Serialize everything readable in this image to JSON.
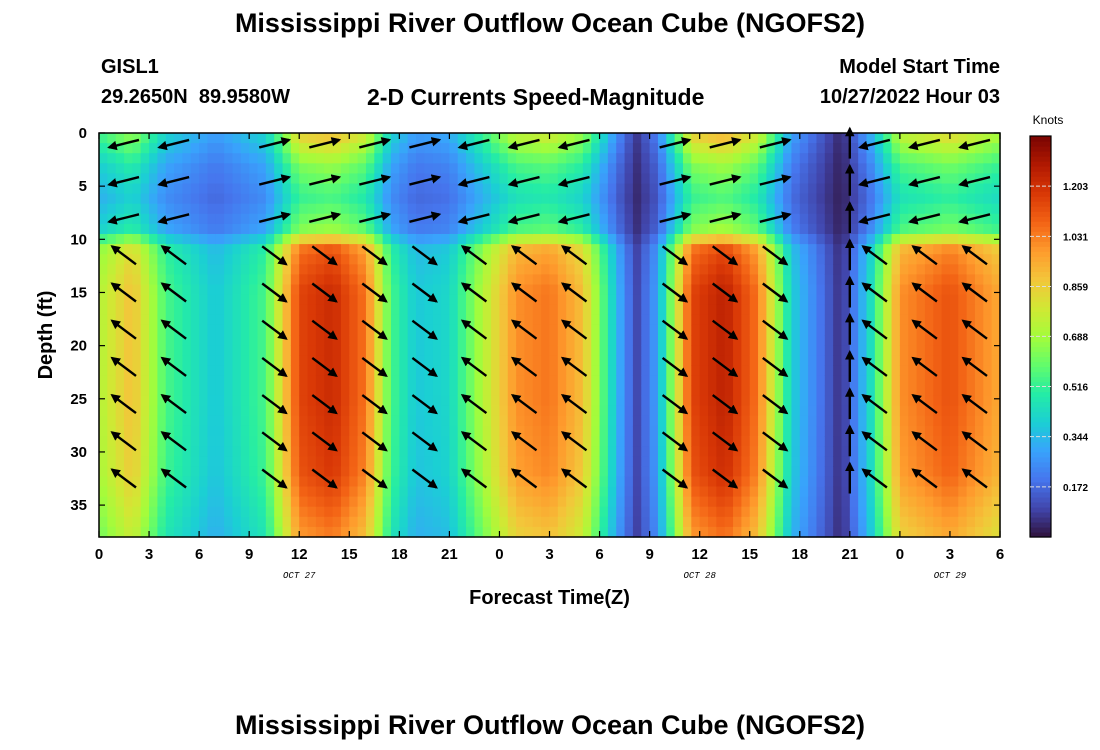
{
  "title": "Mississippi River Outflow Ocean Cube (NGOFS2)",
  "title_bottom": "Mississippi River Outflow Ocean Cube (NGOFS2)",
  "station": {
    "id": "GISL1",
    "coords": "29.2650N  89.9580W"
  },
  "subtitle": "2-D Currents Speed-Magnitude",
  "model_start": {
    "label": "Model Start Time",
    "value": "10/27/2022 Hour 03"
  },
  "chart_data": {
    "type": "heatmap",
    "xlabel": "Forecast Time(Z)",
    "ylabel": "Depth (ft)",
    "x_range_hours": [
      0,
      54
    ],
    "x_tick_labels": [
      "0",
      "3",
      "6",
      "9",
      "12",
      "15",
      "18",
      "21",
      "0",
      "3",
      "6",
      "9",
      "12",
      "15",
      "18",
      "21",
      "0",
      "3",
      "6"
    ],
    "date_labels": [
      {
        "label": "OCT 27",
        "hour": 12
      },
      {
        "label": "OCT 28",
        "hour": 36
      },
      {
        "label": "OCT 29",
        "hour": 51
      }
    ],
    "y_range": [
      0,
      38
    ],
    "y_reversed": true,
    "y_ticks": [
      0,
      5,
      10,
      15,
      20,
      25,
      30,
      35
    ],
    "colorbar": {
      "label": "Knots",
      "range": [
        0,
        1.375
      ],
      "ticks": [
        "1.203",
        "1.031",
        "0.859",
        "0.688",
        "0.516",
        "0.344",
        "0.172"
      ],
      "tick_values": [
        1.203,
        1.031,
        0.859,
        0.688,
        0.516,
        0.344,
        0.172
      ],
      "colormap": [
        "#30123b",
        "#4145ab",
        "#4675ed",
        "#39a2fc",
        "#1bcfd4",
        "#24eca6",
        "#61fc6c",
        "#a4fc3b",
        "#d1e834",
        "#f3c63a",
        "#fe9b2d",
        "#f36315",
        "#d93806",
        "#b11901",
        "#7a0402"
      ]
    },
    "speed_by_time": [
      {
        "hour": 0,
        "speed": 0.72
      },
      {
        "hour": 2,
        "speed": 0.9
      },
      {
        "hour": 4,
        "speed": 0.55
      },
      {
        "hour": 7,
        "speed": 0.38
      },
      {
        "hour": 10,
        "speed": 0.55
      },
      {
        "hour": 12,
        "speed": 1.15
      },
      {
        "hour": 14,
        "speed": 1.22
      },
      {
        "hour": 16,
        "speed": 1.05
      },
      {
        "hour": 17.5,
        "speed": 0.55
      },
      {
        "hour": 19,
        "speed": 0.38
      },
      {
        "hour": 21,
        "speed": 0.42
      },
      {
        "hour": 23,
        "speed": 0.72
      },
      {
        "hour": 25,
        "speed": 1.0
      },
      {
        "hour": 27,
        "speed": 1.05
      },
      {
        "hour": 29,
        "speed": 0.9
      },
      {
        "hour": 31,
        "speed": 0.35
      },
      {
        "hour": 32.2,
        "speed": 0.1
      },
      {
        "hour": 33.5,
        "speed": 0.3
      },
      {
        "hour": 35.5,
        "speed": 1.15
      },
      {
        "hour": 37.5,
        "speed": 1.25
      },
      {
        "hour": 39.5,
        "speed": 1.05
      },
      {
        "hour": 41.5,
        "speed": 0.4
      },
      {
        "hour": 44.5,
        "speed": 0.05
      },
      {
        "hour": 46.3,
        "speed": 0.45
      },
      {
        "hour": 48,
        "speed": 1.0
      },
      {
        "hour": 51,
        "speed": 1.12
      },
      {
        "hour": 54,
        "speed": 0.95
      }
    ],
    "depth_profile": [
      {
        "depth": 0,
        "factor": 0.75
      },
      {
        "depth": 3,
        "factor": 0.55
      },
      {
        "depth": 6,
        "factor": 0.45
      },
      {
        "depth": 9,
        "factor": 0.55
      },
      {
        "depth": 11,
        "factor": 0.92
      },
      {
        "depth": 15,
        "factor": 1.0
      },
      {
        "depth": 25,
        "factor": 1.0
      },
      {
        "depth": 32,
        "factor": 0.97
      },
      {
        "depth": 38,
        "factor": 0.85
      }
    ],
    "vector_direction_by_time": [
      {
        "hour": 1.5,
        "dir": "northwest"
      },
      {
        "hour": 4.5,
        "dir": "northwest"
      },
      {
        "hour": 10.5,
        "dir": "southeast"
      },
      {
        "hour": 13.5,
        "dir": "southeast"
      },
      {
        "hour": 16.5,
        "dir": "southeast"
      },
      {
        "hour": 19.5,
        "dir": "southeast"
      },
      {
        "hour": 22.5,
        "dir": "northwest"
      },
      {
        "hour": 25.5,
        "dir": "northwest"
      },
      {
        "hour": 28.5,
        "dir": "northwest"
      },
      {
        "hour": 34.5,
        "dir": "southeast"
      },
      {
        "hour": 37.5,
        "dir": "southeast"
      },
      {
        "hour": 40.5,
        "dir": "southeast"
      },
      {
        "hour": 45,
        "dir": "north"
      },
      {
        "hour": 46.5,
        "dir": "northwest"
      },
      {
        "hour": 49.5,
        "dir": "northwest"
      },
      {
        "hour": 52.5,
        "dir": "northwest"
      }
    ]
  }
}
